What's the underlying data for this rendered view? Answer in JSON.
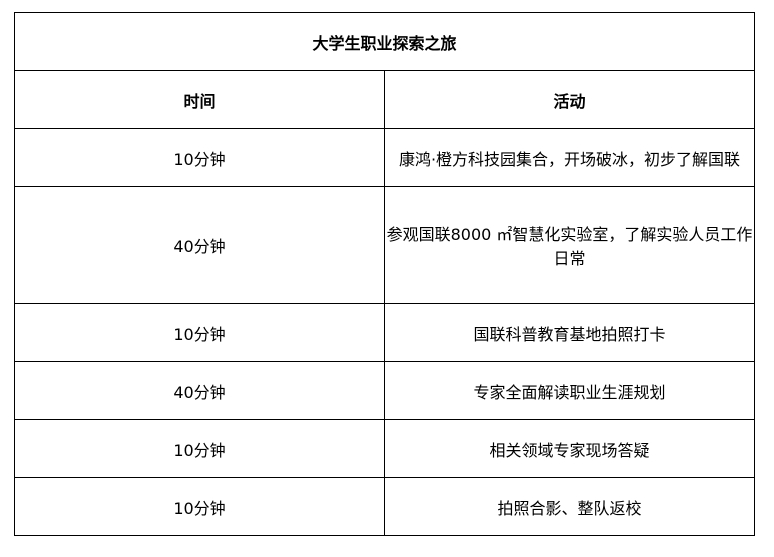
{
  "table": {
    "title": "大学生职业探索之旅",
    "headers": [
      "时间",
      "活动"
    ],
    "rows": [
      {
        "time": "10分钟",
        "activity": "康鸿·橙方科技园集合，开场破冰，初步了解国联"
      },
      {
        "time": "40分钟",
        "activity": "参观国联8000 ㎡智慧化实验室，了解实验人员工作日常"
      },
      {
        "time": "10分钟",
        "activity": "国联科普教育基地拍照打卡"
      },
      {
        "time": "40分钟",
        "activity": "专家全面解读职业生涯规划"
      },
      {
        "time": "10分钟",
        "activity": "相关领域专家现场答疑"
      },
      {
        "time": "10分钟",
        "activity": "拍照合影、整队返校"
      }
    ]
  }
}
